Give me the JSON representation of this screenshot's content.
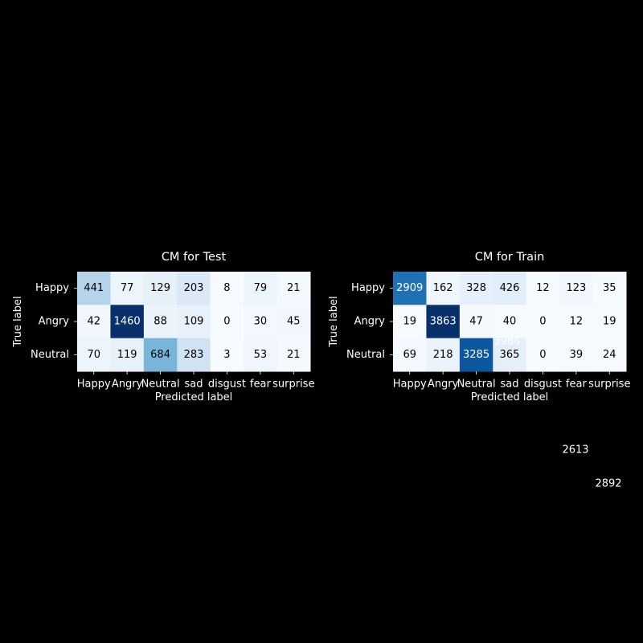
{
  "chart_data": [
    {
      "type": "heatmap",
      "title": "CM for Test",
      "xlabel": "Predicted label",
      "ylabel": "True label",
      "x_categories": [
        "Happy",
        "Angry",
        "Neutral",
        "sad",
        "disgust",
        "fear",
        "surprise"
      ],
      "y_categories": [
        "Happy",
        "Angry",
        "Neutral"
      ],
      "values": [
        [
          441,
          77,
          129,
          203,
          8,
          79,
          21
        ],
        [
          42,
          1460,
          88,
          109,
          0,
          30,
          45
        ],
        [
          70,
          119,
          684,
          283,
          3,
          53,
          21
        ]
      ],
      "colormap": "Blues",
      "color_range": [
        0,
        1460
      ],
      "colorbar": false
    },
    {
      "type": "heatmap",
      "title": "CM for Train",
      "xlabel": "Predicted label",
      "ylabel": "True label",
      "x_categories": [
        "Happy",
        "Angry",
        "Neutral",
        "sad",
        "disgust",
        "fear",
        "surprise"
      ],
      "y_categories": [
        "Happy",
        "Angry",
        "Neutral"
      ],
      "values": [
        [
          2909,
          162,
          328,
          426,
          12,
          123,
          35
        ],
        [
          19,
          3863,
          47,
          40,
          0,
          12,
          19
        ],
        [
          69,
          218,
          3285,
          365,
          0,
          39,
          24
        ]
      ],
      "colormap": "Blues",
      "color_range": [
        0,
        3863
      ],
      "colorbar": false
    }
  ],
  "stray_labels": [
    {
      "text": "3984"
    },
    {
      "text": "2613"
    },
    {
      "text": "2892"
    }
  ],
  "colors": {
    "background": "#000000",
    "text": "#ffffff"
  }
}
